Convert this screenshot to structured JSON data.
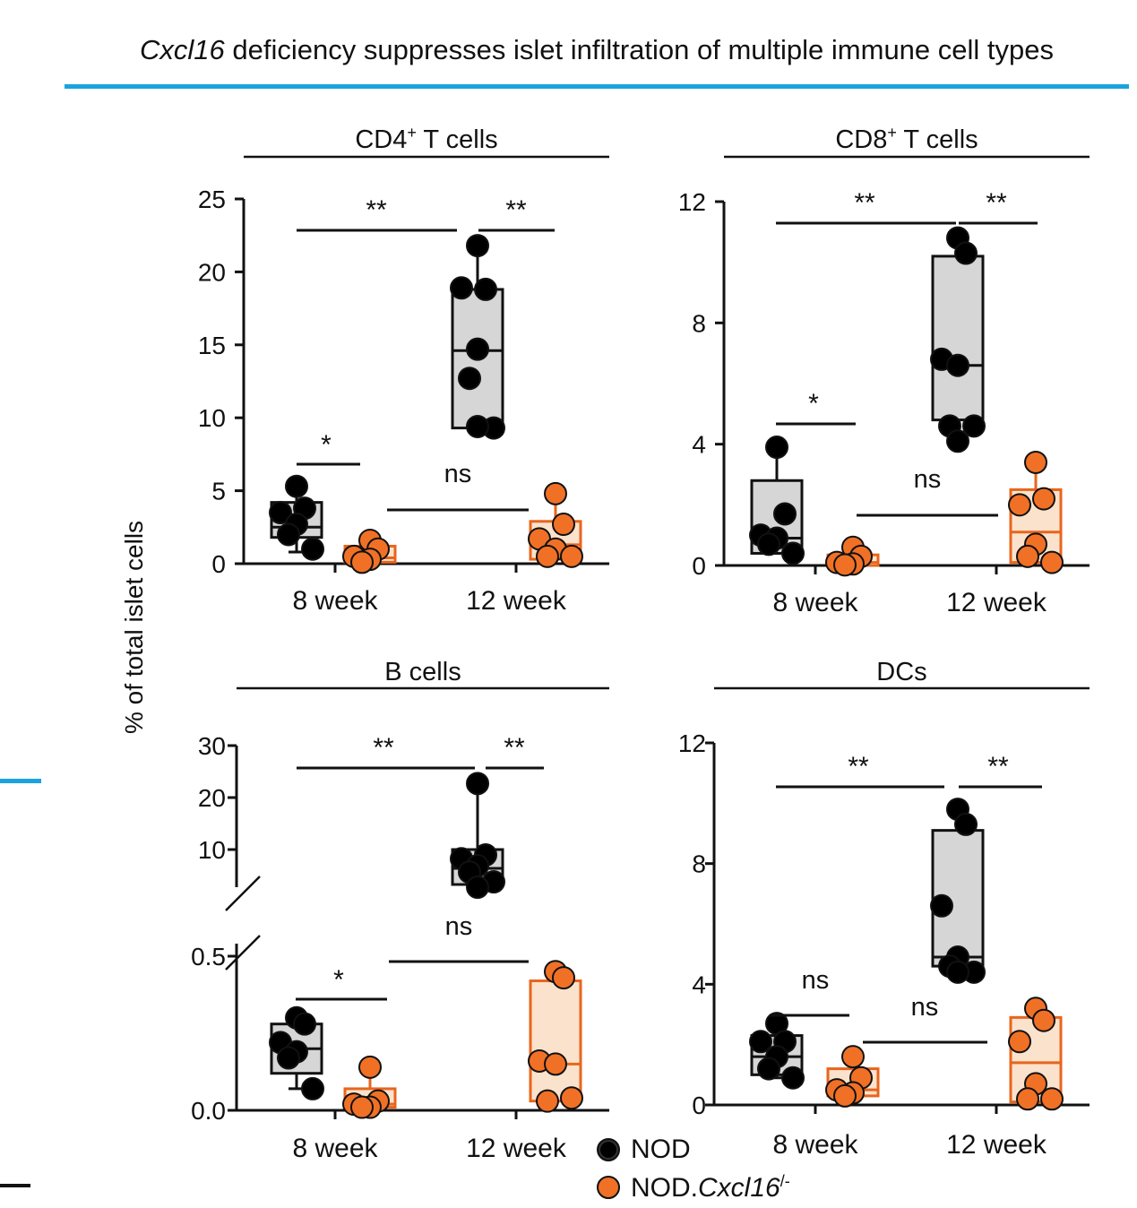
{
  "figure": {
    "title_italic": "Cxcl16",
    "title_rest": " deficiency suppresses islet infiltration of multiple immune cell types",
    "y_axis_label": "% of total islet cells"
  },
  "legend": [
    {
      "label": "NOD",
      "color": "#000000"
    },
    {
      "label": "NOD.",
      "label_italic": "Cxcl16",
      "label_sup": "/-",
      "color": "#f07126"
    }
  ],
  "colors": {
    "nod_fill": "#000000",
    "nod_box": "#d6d6d6",
    "ko_fill": "#f07126",
    "ko_box": "#fbe2cc",
    "ko_edge": "#e8651c",
    "accent": "#1aa3dd"
  },
  "chart_data": [
    {
      "type": "box",
      "panel": "CD4+ T cells",
      "title_main": "CD4",
      "title_sup": "+",
      "title_rest": " T cells",
      "categories": [
        "8 week",
        "12 week"
      ],
      "ylim": [
        0,
        25
      ],
      "yticks": [
        0,
        5,
        10,
        15,
        20,
        25
      ],
      "series": [
        {
          "name": "NOD",
          "groups": [
            {
              "category": "8 week",
              "points": [
                5.3,
                3.8,
                3.5,
                2.7,
                2.0,
                1.0
              ],
              "box": [
                0.8,
                1.8,
                2.5,
                4.2,
                5.3
              ]
            },
            {
              "category": "12 week",
              "points": [
                21.8,
                18.8,
                18.9,
                14.7,
                12.7,
                9.3,
                9.4
              ],
              "box": [
                9.3,
                9.3,
                14.6,
                18.8,
                21.8
              ]
            }
          ]
        },
        {
          "name": "NOD.Cxcl16/-",
          "groups": [
            {
              "category": "8 week",
              "points": [
                1.6,
                1.0,
                0.5,
                0.3,
                0.1
              ],
              "box": [
                0.1,
                0.1,
                0.4,
                1.2,
                1.6
              ]
            },
            {
              "category": "12 week",
              "points": [
                4.8,
                2.7,
                1.7,
                1.0,
                0.5,
                0.5
              ],
              "box": [
                0.5,
                0.3,
                1.3,
                2.9,
                4.8
              ]
            }
          ]
        }
      ],
      "significance": [
        {
          "label": "**",
          "between": "8 week NOD vs 12 week NOD"
        },
        {
          "label": "**",
          "between": "12 week NOD vs 12 week NOD.Cxcl16/-"
        },
        {
          "label": "*",
          "between": "8 week NOD vs 8 week NOD.Cxcl16/-"
        },
        {
          "label": "ns",
          "between": "8 week NOD.Cxcl16/- vs 12 week NOD.Cxcl16/-"
        }
      ]
    },
    {
      "type": "box",
      "panel": "CD8+ T cells",
      "title_main": "CD8",
      "title_sup": "+",
      "title_rest": " T cells",
      "categories": [
        "8 week",
        "12 week"
      ],
      "ylim": [
        0,
        12
      ],
      "yticks": [
        0,
        4,
        8,
        12
      ],
      "series": [
        {
          "name": "NOD",
          "groups": [
            {
              "category": "8 week",
              "points": [
                3.9,
                1.7,
                1.0,
                0.9,
                0.7,
                0.4
              ],
              "box": [
                0.4,
                0.4,
                0.9,
                2.8,
                3.9
              ]
            },
            {
              "category": "12 week",
              "points": [
                10.8,
                10.3,
                6.8,
                6.6,
                4.6,
                4.6,
                4.1
              ],
              "box": [
                4.1,
                4.8,
                6.6,
                10.2,
                10.8
              ]
            }
          ]
        },
        {
          "name": "NOD.Cxcl16/-",
          "groups": [
            {
              "category": "8 week",
              "points": [
                0.6,
                0.3,
                0.1,
                0.05,
                0.02
              ],
              "box": [
                0.0,
                0.0,
                0.1,
                0.35,
                0.6
              ]
            },
            {
              "category": "12 week",
              "points": [
                3.4,
                2.2,
                2.0,
                0.7,
                0.3,
                0.1
              ],
              "box": [
                0.1,
                0.1,
                1.1,
                2.5,
                3.4
              ]
            }
          ]
        }
      ],
      "significance": [
        {
          "label": "**",
          "between": "8 week NOD vs 12 week NOD"
        },
        {
          "label": "**",
          "between": "12 week NOD vs 12 week NOD.Cxcl16/-"
        },
        {
          "label": "*",
          "between": "8 week NOD vs 8 week NOD.Cxcl16/-"
        },
        {
          "label": "ns",
          "between": "8 week NOD.Cxcl16/- vs 12 week NOD.Cxcl16/-"
        }
      ]
    },
    {
      "type": "box",
      "panel": "B cells",
      "title_main": "B cells",
      "title_sup": "",
      "title_rest": "",
      "categories": [
        "8 week",
        "12 week"
      ],
      "axis_break": true,
      "ylim_lower": [
        0,
        0.5
      ],
      "ylim_upper": [
        0,
        30
      ],
      "yticks_lower": [
        "0.0",
        "0.5"
      ],
      "yticks_upper": [
        10,
        20,
        30
      ],
      "series": [
        {
          "name": "NOD",
          "groups": [
            {
              "category": "8 week",
              "points": [
                0.3,
                0.28,
                0.22,
                0.19,
                0.17,
                0.07
              ],
              "box": [
                0.07,
                0.12,
                0.2,
                0.28,
                0.3
              ]
            },
            {
              "category": "12 week",
              "points": [
                22.7,
                9.0,
                8.3,
                7.0,
                5.8,
                4.0,
                3.0
              ],
              "box": [
                3.0,
                3.5,
                6.5,
                10.0,
                22.7
              ]
            }
          ]
        },
        {
          "name": "NOD.Cxcl16/-",
          "groups": [
            {
              "category": "8 week",
              "points": [
                0.14,
                0.03,
                0.02,
                0.01,
                0.01
              ],
              "box": [
                0.01,
                0.01,
                0.02,
                0.07,
                0.14
              ]
            },
            {
              "category": "12 week",
              "points": [
                0.45,
                0.43,
                0.16,
                0.15,
                0.03,
                0.04
              ],
              "box": [
                0.03,
                0.03,
                0.15,
                0.42,
                0.45
              ]
            }
          ]
        }
      ],
      "significance": [
        {
          "label": "**",
          "between": "8 week NOD vs 12 week NOD"
        },
        {
          "label": "**",
          "between": "12 week NOD vs 12 week NOD.Cxcl16/-"
        },
        {
          "label": "*",
          "between": "8 week NOD vs 8 week NOD.Cxcl16/-"
        },
        {
          "label": "ns",
          "between": "8 week NOD.Cxcl16/- vs 12 week NOD.Cxcl16/-"
        }
      ]
    },
    {
      "type": "box",
      "panel": "DCs",
      "title_main": "DCs",
      "title_sup": "",
      "title_rest": "",
      "categories": [
        "8 week",
        "12 week"
      ],
      "ylim": [
        0,
        12
      ],
      "yticks": [
        0,
        4,
        8,
        12
      ],
      "series": [
        {
          "name": "NOD",
          "groups": [
            {
              "category": "8 week",
              "points": [
                2.7,
                2.1,
                2.1,
                1.6,
                1.2,
                0.9
              ],
              "box": [
                0.9,
                1.0,
                1.6,
                2.3,
                2.7
              ]
            },
            {
              "category": "12 week",
              "points": [
                9.8,
                9.3,
                6.6,
                4.9,
                4.6,
                4.4,
                4.4
              ],
              "box": [
                4.3,
                4.6,
                4.9,
                9.1,
                9.8
              ]
            }
          ]
        },
        {
          "name": "NOD.Cxcl16/-",
          "groups": [
            {
              "category": "8 week",
              "points": [
                1.6,
                0.9,
                0.5,
                0.4,
                0.3
              ],
              "box": [
                0.3,
                0.3,
                0.5,
                1.2,
                1.6
              ]
            },
            {
              "category": "12 week",
              "points": [
                3.2,
                2.8,
                2.1,
                0.7,
                0.2,
                0.2
              ],
              "box": [
                0.1,
                0.1,
                1.4,
                2.9,
                3.2
              ]
            }
          ]
        }
      ],
      "significance": [
        {
          "label": "**",
          "between": "8 week NOD vs 12 week NOD"
        },
        {
          "label": "**",
          "between": "12 week NOD vs 12 week NOD.Cxcl16/-"
        },
        {
          "label": "ns",
          "between": "8 week NOD vs 8 week NOD.Cxcl16/-"
        },
        {
          "label": "ns",
          "between": "8 week NOD.Cxcl16/- vs 12 week NOD.Cxcl16/-"
        }
      ]
    }
  ]
}
